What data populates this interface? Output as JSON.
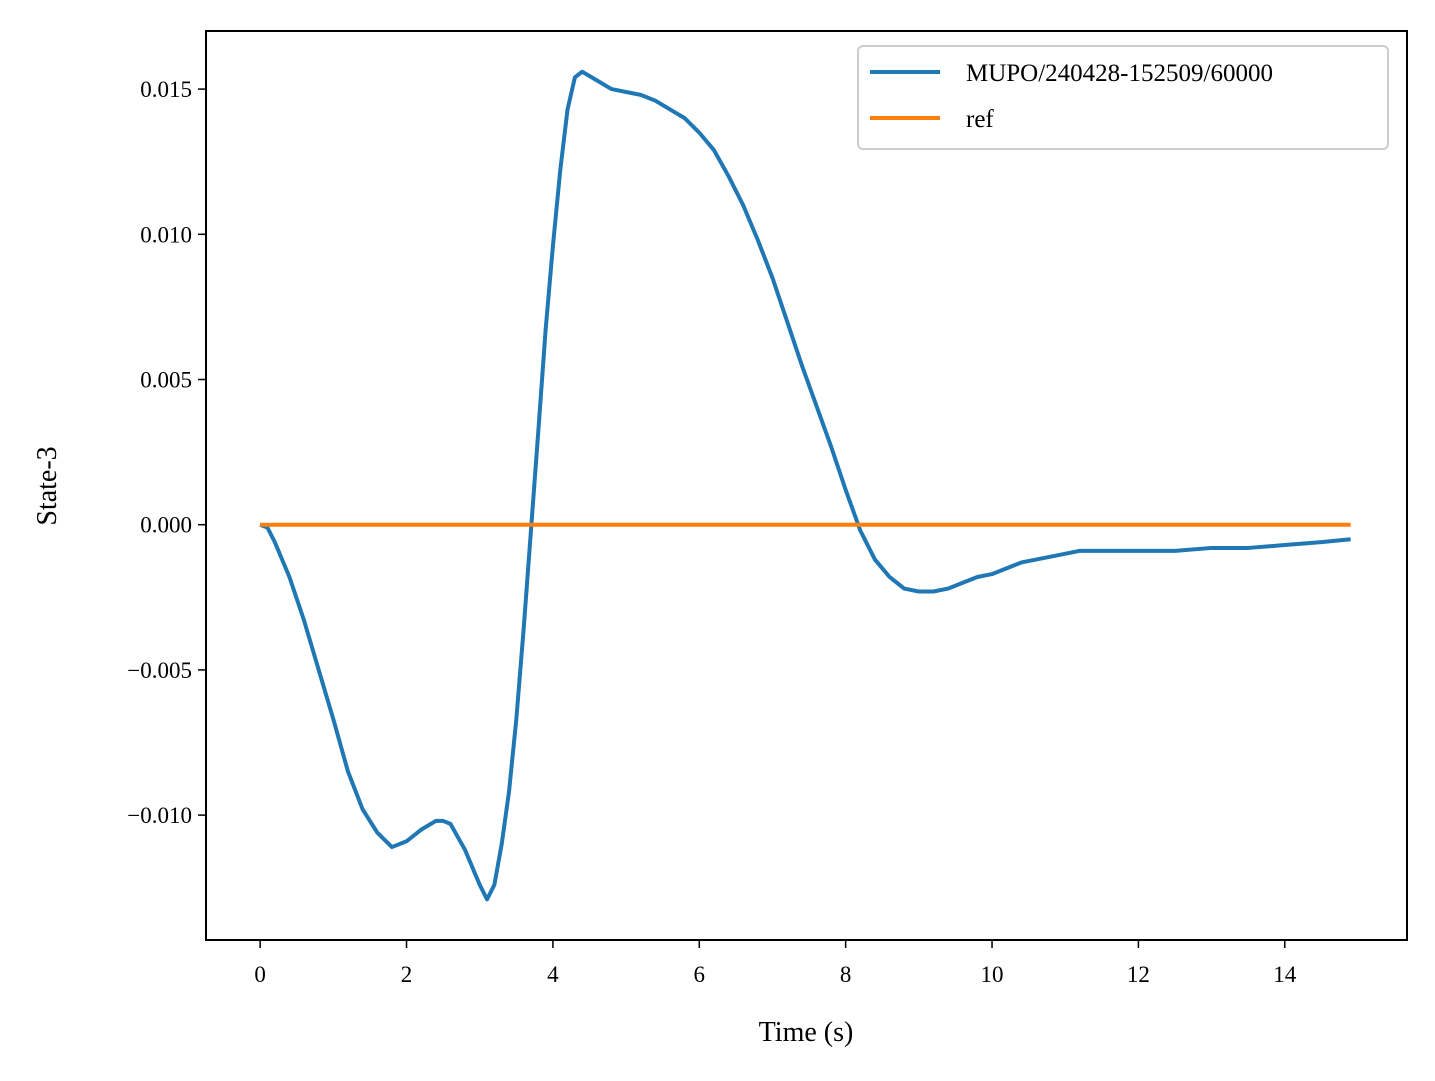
{
  "chart_data": {
    "type": "line",
    "x_label": "Time (s)",
    "y_label": "State-3",
    "x": [
      0,
      0.1,
      0.2,
      0.4,
      0.6,
      0.8,
      1.0,
      1.2,
      1.4,
      1.6,
      1.8,
      2.0,
      2.2,
      2.4,
      2.5,
      2.6,
      2.8,
      3.0,
      3.1,
      3.2,
      3.3,
      3.4,
      3.5,
      3.6,
      3.7,
      3.8,
      3.9,
      4.0,
      4.1,
      4.2,
      4.3,
      4.4,
      4.6,
      4.8,
      5.0,
      5.2,
      5.4,
      5.6,
      5.8,
      6.0,
      6.2,
      6.4,
      6.6,
      6.8,
      7.0,
      7.2,
      7.4,
      7.6,
      7.8,
      8.0,
      8.2,
      8.4,
      8.6,
      8.8,
      9.0,
      9.2,
      9.4,
      9.6,
      9.8,
      10.0,
      10.4,
      10.8,
      11.2,
      11.6,
      12.0,
      12.5,
      13.0,
      13.5,
      14.0,
      14.5,
      14.9
    ],
    "series": [
      {
        "name": "MUPO/240428-152509/60000",
        "color": "#1f77b4",
        "values": [
          0,
          -0.0001,
          -0.0006,
          -0.0018,
          -0.0033,
          -0.005,
          -0.0067,
          -0.0085,
          -0.0098,
          -0.0106,
          -0.0111,
          -0.0109,
          -0.0105,
          -0.0102,
          -0.0102,
          -0.0103,
          -0.0112,
          -0.0124,
          -0.0129,
          -0.0124,
          -0.011,
          -0.0092,
          -0.0067,
          -0.0036,
          -0.0002,
          0.0032,
          0.0067,
          0.0096,
          0.0122,
          0.0143,
          0.0154,
          0.0156,
          0.0153,
          0.015,
          0.0149,
          0.0148,
          0.0146,
          0.0143,
          0.014,
          0.0135,
          0.0129,
          0.012,
          0.011,
          0.0098,
          0.0085,
          0.007,
          0.0055,
          0.0041,
          0.0027,
          0.0012,
          -0.0002,
          -0.0012,
          -0.0018,
          -0.0022,
          -0.0023,
          -0.0023,
          -0.0022,
          -0.002,
          -0.0018,
          -0.0017,
          -0.0013,
          -0.0011,
          -0.0009,
          -0.0009,
          -0.0009,
          -0.0009,
          -0.0008,
          -0.0008,
          -0.0007,
          -0.0006,
          -0.0005
        ]
      },
      {
        "name": "ref",
        "color": "#ff7f0e",
        "values": [
          0,
          0,
          0,
          0,
          0,
          0,
          0,
          0,
          0,
          0,
          0,
          0,
          0,
          0,
          0,
          0,
          0,
          0,
          0,
          0,
          0,
          0,
          0,
          0,
          0,
          0,
          0,
          0,
          0,
          0,
          0,
          0,
          0,
          0,
          0,
          0,
          0,
          0,
          0,
          0,
          0,
          0,
          0,
          0,
          0,
          0,
          0,
          0,
          0,
          0,
          0,
          0,
          0,
          0,
          0,
          0,
          0,
          0,
          0,
          0,
          0,
          0,
          0,
          0,
          0,
          0,
          0,
          0,
          0,
          0,
          0
        ]
      }
    ],
    "xlim": [
      -0.74,
      15.67
    ],
    "ylim": [
      -0.0143,
      0.017
    ],
    "xticks": [
      0,
      2,
      4,
      6,
      8,
      10,
      12,
      14
    ],
    "yticks": [
      {
        "value": -0.01,
        "label": "−0.010"
      },
      {
        "value": -0.005,
        "label": "−0.005"
      },
      {
        "value": 0,
        "label": "0.000"
      },
      {
        "value": 0.005,
        "label": "0.005"
      },
      {
        "value": 0.01,
        "label": "0.010"
      },
      {
        "value": 0.015,
        "label": "0.015"
      }
    ],
    "legend": "upper right",
    "grid": false
  }
}
